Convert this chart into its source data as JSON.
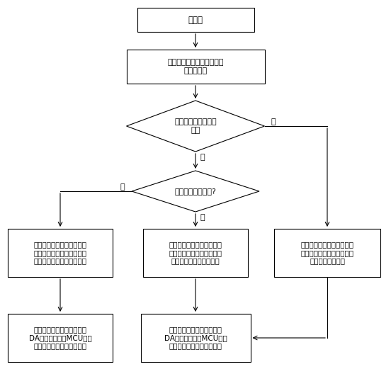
{
  "title": "初始化",
  "box2": "激光器的发光偏置电流、发\n光功率采集",
  "diamond1": "上位机是否进行设置\n处理",
  "diamond2": "是否设置发光模式?",
  "box_left": "依据上位机设置的偏置电流\n值、激光器采样的偏置电流\n值进行偏置电流自适应控制",
  "box_mid": "依据上位机设置的发光功率\n值、激光器采样的发光功率\n值进行光功率自适应控制",
  "box_right": "依据默认的发光功率值、激\n光器采样的发光功率值进行\n光功率自适应控制",
  "box_bottom_left": "通过自适应控制得到具体的\nDA数据值，通过MCU控制\n激光器产生对应的偏置电流",
  "box_bottom_mid": "通过自适应控制得到具体的\nDA数据值，通过MCU控制\n激光器产生对应的发光功率",
  "label_yes1": "是",
  "label_no1": "否",
  "label_yes2": "是",
  "label_no2": "否",
  "bg_color": "#ffffff",
  "line_color": "#000000",
  "text_color": "#000000",
  "font_size": 8.0
}
